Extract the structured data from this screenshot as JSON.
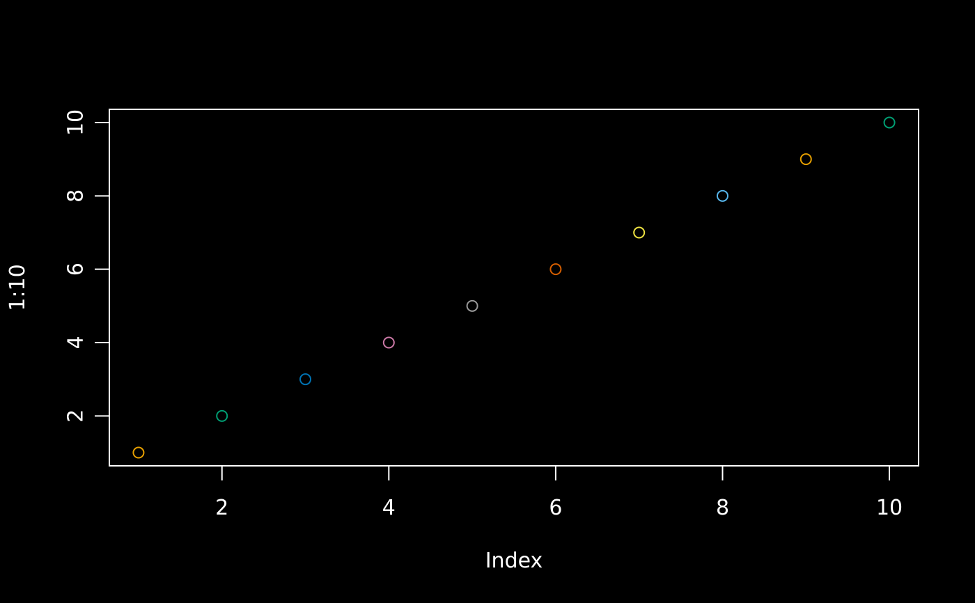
{
  "chart_data": {
    "type": "scatter",
    "title": "",
    "xlabel": "Index",
    "ylabel": "1:10",
    "xlim": [
      0.65,
      10.35
    ],
    "ylim": [
      0.64,
      10.36
    ],
    "xticks": [
      2,
      4,
      6,
      8,
      10
    ],
    "yticks": [
      2,
      4,
      6,
      8,
      10
    ],
    "grid": false,
    "legend": "none",
    "background": "#000000",
    "foreground": "#ffffff",
    "points": [
      {
        "x": 1,
        "y": 1,
        "color": "#E69F00"
      },
      {
        "x": 2,
        "y": 2,
        "color": "#009E73"
      },
      {
        "x": 3,
        "y": 3,
        "color": "#0072B2"
      },
      {
        "x": 4,
        "y": 4,
        "color": "#CC79A7"
      },
      {
        "x": 5,
        "y": 5,
        "color": "#999999"
      },
      {
        "x": 6,
        "y": 6,
        "color": "#D55E00"
      },
      {
        "x": 7,
        "y": 7,
        "color": "#F0E442"
      },
      {
        "x": 8,
        "y": 8,
        "color": "#56B4E9"
      },
      {
        "x": 9,
        "y": 9,
        "color": "#E69F00"
      },
      {
        "x": 10,
        "y": 10,
        "color": "#009E73"
      }
    ]
  }
}
